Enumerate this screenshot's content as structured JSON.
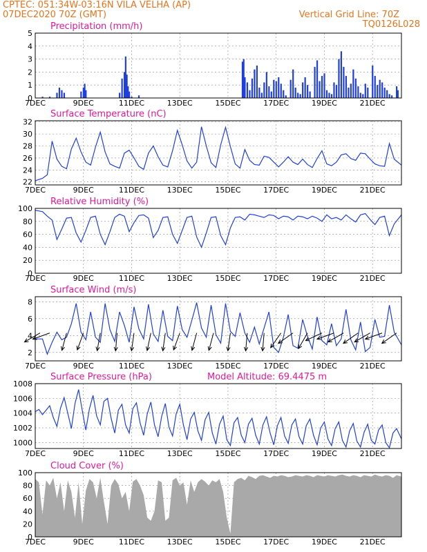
{
  "header": {
    "line1_left": "CPTEC:   051:34W-03:16N   VILA VELHA (AP)",
    "line2_left": "07DEC2020  70Z (GMT)",
    "line1_right": "Vertical Grid Line: 70Z",
    "line2_right": "TQ0126L028"
  },
  "colors": {
    "header": "#e8731a",
    "title": "#e0199a",
    "series": "#1f3fe0",
    "cloud": "#a9a9a9",
    "grid": "#888888"
  },
  "x_tick_labels": [
    "7DEC",
    "9DEC",
    "11DEC",
    "13DEC",
    "15DEC",
    "17DEC",
    "19DEC",
    "21DEC"
  ],
  "x_tick_days": [
    7,
    9,
    11,
    13,
    15,
    17,
    19,
    21
  ],
  "x_range_days": [
    7,
    22.2
  ],
  "chart_data": [
    {
      "type": "bar",
      "title": "Precipitation (mm/h)",
      "ylim": [
        0,
        5
      ],
      "yticks": [
        0,
        1,
        2,
        3,
        4,
        5
      ],
      "x": [
        7.3,
        7.6,
        7.9,
        8.0,
        8.1,
        8.2,
        8.9,
        9.0,
        9.05,
        9.1,
        10.5,
        10.6,
        10.7,
        10.75,
        10.8,
        10.85,
        10.9,
        11.0,
        11.3,
        15.6,
        15.65,
        15.7,
        15.8,
        15.9,
        16.0,
        16.1,
        16.2,
        16.3,
        16.4,
        16.5,
        16.6,
        16.7,
        16.8,
        16.9,
        17.0,
        17.1,
        17.2,
        17.3,
        17.4,
        17.6,
        17.7,
        17.8,
        17.9,
        18.0,
        18.1,
        18.2,
        18.3,
        18.4,
        18.6,
        18.7,
        18.8,
        18.9,
        19.0,
        19.1,
        19.2,
        19.3,
        19.4,
        19.5,
        19.6,
        19.7,
        19.8,
        19.9,
        20.0,
        20.1,
        20.2,
        20.3,
        20.4,
        20.5,
        20.6,
        20.7,
        20.8,
        21.0,
        21.1,
        21.2,
        21.3,
        21.4,
        21.5,
        21.6,
        21.7,
        21.8,
        22.0,
        22.05
      ],
      "values": [
        0.1,
        0.1,
        0.4,
        0.8,
        0.6,
        0.4,
        0.5,
        0.8,
        1.1,
        0.6,
        0.4,
        1.5,
        2.0,
        3.2,
        1.8,
        0.9,
        0.5,
        0.1,
        0.2,
        2.8,
        3.0,
        1.6,
        1.2,
        0.6,
        1.5,
        2.2,
        2.5,
        0.8,
        0.4,
        1.2,
        2.0,
        0.9,
        0.5,
        1.4,
        1.3,
        1.6,
        1.1,
        0.6,
        0.2,
        1.4,
        2.2,
        0.8,
        0.4,
        0.3,
        1.2,
        1.6,
        1.0,
        0.5,
        2.4,
        2.9,
        1.3,
        1.7,
        1.9,
        0.6,
        0.4,
        0.3,
        1.2,
        1.0,
        3.0,
        3.6,
        2.4,
        1.7,
        0.8,
        1.1,
        2.2,
        1.5,
        0.9,
        0.4,
        0.3,
        1.1,
        0.8,
        2.5,
        1.7,
        1.0,
        1.4,
        1.2,
        0.8,
        0.6,
        0.3,
        0.2,
        0.9,
        0.6
      ]
    },
    {
      "type": "line",
      "title": "Surface Temperature (nC)",
      "ylim": [
        21.5,
        32.2
      ],
      "yticks": [
        22,
        24,
        26,
        28,
        30,
        32
      ],
      "x": [
        7.0,
        7.3,
        7.5,
        7.7,
        7.9,
        8.1,
        8.3,
        8.5,
        8.7,
        8.9,
        9.1,
        9.3,
        9.5,
        9.7,
        9.9,
        10.1,
        10.3,
        10.5,
        10.7,
        10.9,
        11.1,
        11.3,
        11.5,
        11.7,
        11.9,
        12.1,
        12.3,
        12.5,
        12.7,
        12.9,
        13.1,
        13.3,
        13.5,
        13.7,
        13.9,
        14.1,
        14.3,
        14.5,
        14.7,
        14.9,
        15.1,
        15.3,
        15.5,
        15.7,
        15.9,
        16.1,
        16.3,
        16.5,
        16.7,
        16.9,
        17.1,
        17.3,
        17.5,
        17.7,
        17.9,
        18.1,
        18.3,
        18.5,
        18.7,
        18.9,
        19.1,
        19.3,
        19.5,
        19.7,
        19.9,
        20.1,
        20.3,
        20.5,
        20.7,
        20.9,
        21.1,
        21.3,
        21.5,
        21.7,
        21.9,
        22.2
      ],
      "values": [
        22.2,
        22.6,
        23.2,
        28.8,
        25.8,
        24.6,
        24.2,
        27.5,
        29.3,
        27.0,
        25.3,
        24.8,
        27.8,
        30.3,
        27.0,
        25.0,
        24.6,
        24.3,
        26.8,
        27.3,
        26.0,
        24.6,
        24.1,
        26.8,
        28.0,
        26.2,
        24.8,
        24.5,
        27.2,
        30.6,
        28.2,
        25.5,
        24.3,
        25.3,
        31.2,
        28.0,
        25.2,
        24.4,
        28.2,
        31.1,
        27.9,
        25.0,
        24.3,
        27.4,
        25.6,
        24.9,
        24.8,
        26.3,
        26.1,
        25.3,
        24.5,
        25.3,
        26.2,
        25.3,
        24.9,
        25.8,
        24.9,
        24.4,
        25.9,
        27.2,
        25.0,
        24.7,
        25.3,
        26.5,
        26.7,
        25.9,
        25.6,
        26.8,
        26.7,
        25.8,
        25.0,
        24.7,
        24.6,
        28.4,
        25.8,
        24.8
      ]
    },
    {
      "type": "line",
      "title": "Relative Humidity (%)",
      "ylim": [
        0,
        100
      ],
      "yticks": [
        0,
        20,
        40,
        60,
        80,
        100
      ],
      "x": [
        7.0,
        7.3,
        7.5,
        7.7,
        7.9,
        8.1,
        8.3,
        8.5,
        8.7,
        8.9,
        9.1,
        9.3,
        9.5,
        9.7,
        9.9,
        10.1,
        10.3,
        10.5,
        10.7,
        10.9,
        11.1,
        11.3,
        11.5,
        11.7,
        11.9,
        12.1,
        12.3,
        12.5,
        12.7,
        12.9,
        13.1,
        13.3,
        13.5,
        13.7,
        13.9,
        14.1,
        14.3,
        14.5,
        14.7,
        14.9,
        15.1,
        15.3,
        15.5,
        15.7,
        15.9,
        16.1,
        16.3,
        16.5,
        16.7,
        16.9,
        17.1,
        17.3,
        17.5,
        17.7,
        17.9,
        18.1,
        18.3,
        18.5,
        18.7,
        18.9,
        19.1,
        19.3,
        19.5,
        19.7,
        19.9,
        20.1,
        20.3,
        20.5,
        20.7,
        20.9,
        21.1,
        21.3,
        21.5,
        21.7,
        21.9,
        22.2
      ],
      "values": [
        97,
        95,
        88,
        82,
        52,
        68,
        85,
        86,
        62,
        48,
        66,
        86,
        88,
        60,
        44,
        64,
        86,
        91,
        88,
        64,
        78,
        89,
        90,
        85,
        55,
        66,
        86,
        87,
        60,
        46,
        66,
        86,
        88,
        56,
        40,
        62,
        86,
        87,
        58,
        44,
        70,
        86,
        87,
        82,
        91,
        90,
        88,
        86,
        90,
        89,
        84,
        88,
        87,
        82,
        88,
        87,
        84,
        88,
        85,
        80,
        90,
        84,
        86,
        82,
        90,
        84,
        79,
        90,
        92,
        83,
        75,
        86,
        88,
        58,
        76,
        90
      ]
    },
    {
      "type": "line",
      "title": "Surface Wind (m/s)",
      "ylim": [
        1,
        8.6
      ],
      "yticks": [
        2,
        4,
        6,
        8
      ],
      "x": [
        7.0,
        7.3,
        7.5,
        7.7,
        7.9,
        8.1,
        8.3,
        8.5,
        8.7,
        8.9,
        9.1,
        9.3,
        9.5,
        9.7,
        9.9,
        10.1,
        10.3,
        10.5,
        10.7,
        10.9,
        11.1,
        11.3,
        11.5,
        11.7,
        11.9,
        12.1,
        12.3,
        12.5,
        12.7,
        12.9,
        13.1,
        13.3,
        13.5,
        13.7,
        13.9,
        14.1,
        14.3,
        14.5,
        14.7,
        14.9,
        15.1,
        15.3,
        15.5,
        15.7,
        15.9,
        16.1,
        16.3,
        16.5,
        16.7,
        16.9,
        17.1,
        17.3,
        17.5,
        17.7,
        17.9,
        18.1,
        18.3,
        18.5,
        18.7,
        18.9,
        19.1,
        19.3,
        19.5,
        19.7,
        19.9,
        20.1,
        20.3,
        20.5,
        20.7,
        20.9,
        21.1,
        21.3,
        21.5,
        21.7,
        21.9,
        22.2
      ],
      "values": [
        3.6,
        3.6,
        1.8,
        3.2,
        4.4,
        3.5,
        3.8,
        5.4,
        7.8,
        4.4,
        3.5,
        6.8,
        3.8,
        3.2,
        7.8,
        4.7,
        3.3,
        6.8,
        5.2,
        3.2,
        7.4,
        4.8,
        3.6,
        7.7,
        4.2,
        3.3,
        7.0,
        3.9,
        3.4,
        7.5,
        4.7,
        3.8,
        5.8,
        7.9,
        4.9,
        3.8,
        7.6,
        4.1,
        3.1,
        7.8,
        4.5,
        3.9,
        6.7,
        4.3,
        3.2,
        5.0,
        3.0,
        4.9,
        6.8,
        2.6,
        2.0,
        3.8,
        6.5,
        2.8,
        2.5,
        5.9,
        3.9,
        2.4,
        6.2,
        3.4,
        2.9,
        5.4,
        2.8,
        3.6,
        7.1,
        3.5,
        2.3,
        5.6,
        2.1,
        2.6,
        5.9,
        3.8,
        3.9,
        7.6,
        4.4,
        2.9
      ],
      "wind_vectors": {
        "x": [
          7.2,
          7.6,
          8.3,
          9.0,
          9.7,
          10.4,
          11.1,
          11.8,
          12.4,
          13.0,
          13.7,
          14.4,
          15.1,
          15.8,
          16.5,
          17.2,
          17.7,
          18.3,
          18.9,
          19.4,
          19.8,
          20.4,
          20.9,
          21.4,
          22.0
        ],
        "direction_deg": [
          210,
          200,
          255,
          250,
          260,
          265,
          262,
          258,
          262,
          250,
          255,
          255,
          262,
          265,
          265,
          235,
          215,
          240,
          205,
          200,
          210,
          215,
          210,
          200,
          215
        ]
      }
    },
    {
      "type": "line",
      "title": "Surface Pressure (hPa)",
      "annotation": "Model Altitude: 69.4475 m",
      "ylim": [
        999.2,
        1008
      ],
      "yticks": [
        1000,
        1002,
        1004,
        1006,
        1008
      ],
      "x": [
        7.0,
        7.15,
        7.3,
        7.45,
        7.6,
        7.75,
        7.9,
        8.05,
        8.2,
        8.35,
        8.5,
        8.65,
        8.8,
        8.95,
        9.1,
        9.25,
        9.4,
        9.55,
        9.7,
        9.85,
        10.0,
        10.15,
        10.3,
        10.45,
        10.6,
        10.75,
        10.9,
        11.05,
        11.2,
        11.35,
        11.5,
        11.65,
        11.8,
        11.95,
        12.1,
        12.25,
        12.4,
        12.55,
        12.7,
        12.85,
        13.0,
        13.15,
        13.3,
        13.45,
        13.6,
        13.75,
        13.9,
        14.05,
        14.2,
        14.35,
        14.5,
        14.65,
        14.8,
        14.95,
        15.1,
        15.25,
        15.4,
        15.55,
        15.7,
        15.85,
        16.0,
        16.15,
        16.3,
        16.45,
        16.6,
        16.75,
        16.9,
        17.05,
        17.2,
        17.35,
        17.5,
        17.65,
        17.8,
        17.95,
        18.1,
        18.25,
        18.4,
        18.55,
        18.7,
        18.85,
        19.0,
        19.15,
        19.3,
        19.45,
        19.6,
        19.75,
        19.9,
        20.05,
        20.2,
        20.35,
        20.5,
        20.65,
        20.8,
        20.95,
        21.1,
        21.25,
        21.4,
        21.55,
        21.7,
        21.85,
        22.0,
        22.2
      ],
      "values": [
        1004.2,
        1004.5,
        1003.8,
        1004.4,
        1005.0,
        1003.4,
        1002.2,
        1004.7,
        1006.1,
        1004.0,
        1001.9,
        1005.3,
        1007.2,
        1004.4,
        1001.7,
        1004.6,
        1006.4,
        1003.6,
        1002.4,
        1005.6,
        1006.0,
        1003.3,
        1001.3,
        1004.4,
        1005.2,
        1002.4,
        1001.3,
        1004.6,
        1005.4,
        1002.7,
        1001.0,
        1003.9,
        1005.5,
        1002.4,
        1000.8,
        1003.6,
        1005.3,
        1002.1,
        1000.9,
        1003.9,
        1005.2,
        1002.4,
        1000.4,
        1003.2,
        1004.1,
        1001.6,
        1000.3,
        1003.1,
        1004.1,
        1001.3,
        999.8,
        1002.5,
        1003.6,
        1000.4,
        999.6,
        1002.7,
        1003.4,
        1001.0,
        1000.0,
        1002.5,
        1003.3,
        1001.0,
        999.8,
        1002.4,
        1003.5,
        1001.3,
        999.7,
        1002.3,
        1003.4,
        1000.9,
        999.9,
        1002.4,
        1003.2,
        1000.8,
        999.8,
        1002.3,
        1003.2,
        1001.0,
        999.7,
        1002.0,
        1002.8,
        1000.5,
        999.6,
        1001.9,
        1002.8,
        1000.3,
        999.4,
        1001.6,
        1002.6,
        1000.2,
        999.4,
        1001.4,
        1002.5,
        1000.3,
        999.8,
        1001.7,
        1002.4,
        1000.0,
        999.3,
        1001.3,
        1001.9,
        1000.5
      ]
    },
    {
      "type": "area",
      "title": "Cloud Cover (%)",
      "ylim": [
        0,
        100
      ],
      "yticks": [
        0,
        20,
        40,
        60,
        80,
        100
      ],
      "x": [
        7.0,
        7.15,
        7.3,
        7.45,
        7.6,
        7.75,
        7.9,
        8.05,
        8.2,
        8.35,
        8.5,
        8.65,
        8.8,
        8.95,
        9.1,
        9.25,
        9.4,
        9.55,
        9.7,
        9.85,
        10.0,
        10.15,
        10.3,
        10.45,
        10.6,
        10.75,
        10.9,
        11.05,
        11.2,
        11.35,
        11.5,
        11.65,
        11.8,
        11.95,
        12.1,
        12.25,
        12.4,
        12.55,
        12.7,
        12.85,
        13.0,
        13.15,
        13.3,
        13.45,
        13.6,
        13.75,
        13.9,
        14.05,
        14.2,
        14.35,
        14.5,
        14.65,
        14.8,
        14.95,
        15.1,
        15.25,
        15.4,
        15.55,
        15.7,
        15.85,
        16.0,
        16.15,
        16.3,
        16.45,
        16.6,
        16.75,
        16.9,
        17.05,
        17.2,
        17.35,
        17.5,
        17.65,
        17.8,
        17.95,
        18.1,
        18.25,
        18.4,
        18.55,
        18.7,
        18.85,
        19.0,
        19.15,
        19.3,
        19.45,
        19.6,
        19.75,
        19.9,
        20.05,
        20.2,
        20.35,
        20.5,
        20.65,
        20.8,
        20.95,
        21.1,
        21.25,
        21.4,
        21.55,
        21.7,
        21.85,
        22.0,
        22.2
      ],
      "values": [
        90,
        85,
        35,
        88,
        80,
        92,
        60,
        85,
        40,
        88,
        70,
        30,
        85,
        20,
        72,
        90,
        85,
        60,
        92,
        55,
        20,
        80,
        90,
        82,
        60,
        70,
        40,
        86,
        90,
        80,
        65,
        30,
        25,
        40,
        88,
        85,
        25,
        30,
        88,
        92,
        80,
        85,
        50,
        88,
        70,
        85,
        90,
        86,
        80,
        88,
        85,
        90,
        70,
        30,
        5,
        85,
        90,
        92,
        88,
        95,
        93,
        90,
        95,
        96,
        94,
        92,
        95,
        94,
        96,
        95,
        93,
        94,
        96,
        95,
        94,
        96,
        95,
        93,
        96,
        95,
        94,
        96,
        95,
        94,
        96,
        97,
        95,
        94,
        96,
        95,
        93,
        96,
        95,
        94,
        97,
        95,
        94,
        96,
        95,
        92,
        96,
        94
      ]
    }
  ]
}
